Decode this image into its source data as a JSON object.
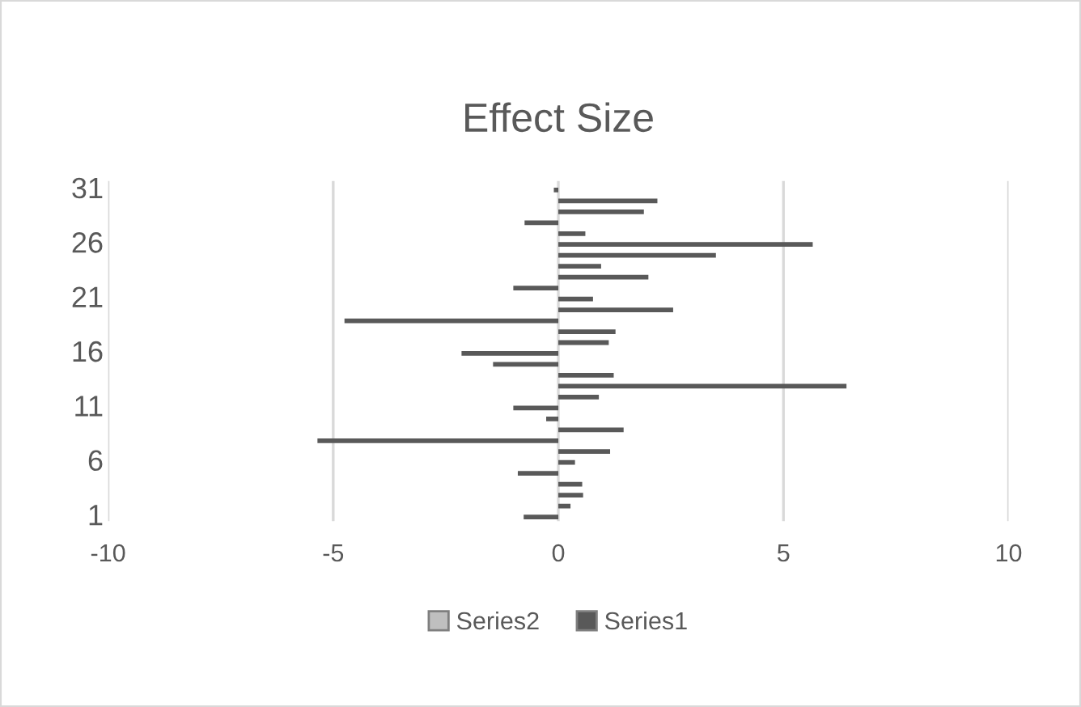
{
  "chart_data": {
    "type": "bar",
    "orientation": "horizontal",
    "title": "Effect Size",
    "categories": [
      "31",
      null,
      null,
      null,
      null,
      "26",
      null,
      null,
      null,
      null,
      "21",
      null,
      null,
      null,
      null,
      "16",
      null,
      null,
      null,
      null,
      "11",
      null,
      null,
      null,
      null,
      "6",
      null,
      null,
      null,
      null,
      "1"
    ],
    "series": [
      {
        "name": "Series2",
        "color": "#bfbfbf",
        "values": [
          null,
          null,
          null,
          null,
          null,
          null,
          null,
          null,
          null,
          null,
          null,
          null,
          null,
          null,
          null,
          null,
          null,
          null,
          null,
          null,
          null,
          null,
          null,
          null,
          null,
          null,
          null,
          null,
          null,
          null,
          null
        ]
      },
      {
        "name": "Series1",
        "color": "#595959",
        "values": [
          -0.1,
          2.2,
          1.9,
          -0.75,
          0.6,
          5.65,
          3.5,
          0.95,
          2.0,
          -1.0,
          0.77,
          2.55,
          -4.75,
          1.27,
          1.12,
          -2.15,
          -1.45,
          1.23,
          6.4,
          0.9,
          -1.0,
          -0.27,
          1.45,
          -5.35,
          1.15,
          0.37,
          -0.9,
          0.53,
          0.55,
          0.27,
          -0.77
        ]
      }
    ],
    "xlim": [
      -10,
      10
    ],
    "xticks": [
      -10,
      -5,
      0,
      5,
      10
    ],
    "grid": "x",
    "legend": "bottom"
  }
}
